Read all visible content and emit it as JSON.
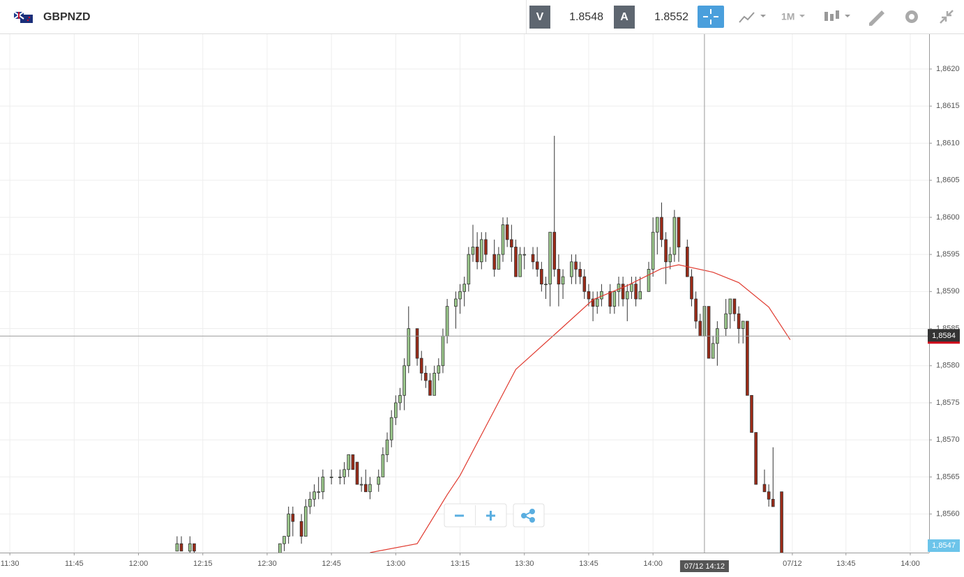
{
  "toolbar": {
    "symbol": "GBPNZD",
    "sell_label": "V",
    "sell_price": "1.8548",
    "buy_label": "A",
    "buy_price": "1.8552",
    "timeframe": "1M"
  },
  "chart_data": {
    "type": "candlestick",
    "x": [
      39,
      40,
      42,
      43,
      63,
      64,
      65,
      66,
      68,
      69,
      70,
      71,
      72,
      73,
      75,
      77,
      78,
      79,
      80,
      81,
      82,
      83,
      84,
      86,
      87,
      88,
      89,
      90,
      91,
      92,
      93,
      95,
      96,
      97,
      98,
      99,
      100,
      101,
      102,
      104,
      105,
      106,
      107,
      108,
      109,
      110,
      111,
      113,
      114,
      115,
      116,
      117,
      118,
      119,
      120,
      122,
      123,
      124,
      125,
      126,
      127,
      128,
      129,
      131,
      132,
      133,
      134,
      135,
      136,
      137,
      138,
      140,
      141,
      142,
      143,
      144,
      145,
      146,
      147,
      149,
      150,
      151,
      152,
      153,
      154,
      155,
      156,
      158,
      159,
      160,
      161,
      162,
      163,
      164,
      165,
      167,
      168,
      169,
      170,
      171,
      172,
      173,
      174,
      176,
      177,
      178,
      180
    ],
    "open": [
      1.8555,
      1.8556,
      1.8555,
      1.8556,
      1.8554,
      1.8556,
      1.8557,
      1.856,
      1.8559,
      1.8557,
      1.8561,
      1.8562,
      1.8563,
      1.8563,
      1.8565,
      1.8565,
      1.8565,
      1.8566,
      1.8568,
      1.8567,
      1.8564,
      1.8564,
      1.8563,
      1.8564,
      1.8565,
      1.8568,
      1.857,
      1.8573,
      1.8575,
      1.8576,
      1.858,
      1.8585,
      1.8581,
      1.8579,
      1.8578,
      1.8576,
      1.8579,
      1.858,
      1.8584,
      1.8588,
      1.8589,
      1.859,
      1.8591,
      1.8595,
      1.8596,
      1.8594,
      1.8597,
      1.8595,
      1.8593,
      1.8595,
      1.8599,
      1.8597,
      1.8596,
      1.8592,
      1.8595,
      1.8595,
      1.8594,
      1.8593,
      1.8591,
      1.8591,
      1.8598,
      1.8593,
      1.8591,
      1.8592,
      1.8594,
      1.8593,
      1.8592,
      1.859,
      1.8589,
      1.8588,
      1.8589,
      1.859,
      1.8588,
      1.859,
      1.8591,
      1.8589,
      1.859,
      1.8591,
      1.8589,
      1.859,
      1.8593,
      1.8598,
      1.86,
      1.8597,
      1.8594,
      1.8595,
      1.86,
      1.8596,
      1.8592,
      1.8589,
      1.8586,
      1.8584,
      1.8588,
      1.8581,
      1.8583,
      1.8585,
      1.8587,
      1.8589,
      1.8587,
      1.8585,
      1.8586,
      1.8576,
      1.8571,
      1.8564,
      1.8563,
      1.8562,
      1.8563
    ],
    "high": [
      1.8557,
      1.8557,
      1.8557,
      1.8556,
      1.8556,
      1.8557,
      1.8561,
      1.8561,
      1.856,
      1.8562,
      1.8563,
      1.8564,
      1.8565,
      1.8566,
      1.8566,
      1.8566,
      1.8567,
      1.8568,
      1.8568,
      1.8567,
      1.8565,
      1.8566,
      1.8565,
      1.8566,
      1.8569,
      1.8571,
      1.8574,
      1.8576,
      1.8577,
      1.8581,
      1.8588,
      1.8585,
      1.8582,
      1.858,
      1.8579,
      1.858,
      1.8581,
      1.8585,
      1.8589,
      1.859,
      1.8591,
      1.8592,
      1.8596,
      1.8599,
      1.8598,
      1.8598,
      1.8598,
      1.8597,
      1.8596,
      1.86,
      1.86,
      1.8599,
      1.8597,
      1.8596,
      1.8596,
      1.8596,
      1.8596,
      1.8594,
      1.8592,
      1.8598,
      1.8611,
      1.8595,
      1.8593,
      1.8595,
      1.8595,
      1.8594,
      1.8593,
      1.8591,
      1.859,
      1.859,
      1.8591,
      1.8591,
      1.859,
      1.8592,
      1.8592,
      1.8591,
      1.8592,
      1.8592,
      1.8592,
      1.8594,
      1.86,
      1.86,
      1.8602,
      1.8598,
      1.8596,
      1.8601,
      1.86,
      1.8597,
      1.8593,
      1.859,
      1.8587,
      1.8588,
      1.8588,
      1.8584,
      1.8586,
      1.8589,
      1.8589,
      1.8589,
      1.8588,
      1.8586,
      1.8586,
      1.8576,
      1.8571,
      1.8566,
      1.8564,
      1.8569,
      1.8563
    ],
    "low": [
      1.8555,
      1.8555,
      1.8554,
      1.8554,
      1.8553,
      1.8555,
      1.8556,
      1.8557,
      1.8556,
      1.8557,
      1.856,
      1.8561,
      1.8562,
      1.8562,
      1.8564,
      1.8564,
      1.8564,
      1.8565,
      1.8566,
      1.8564,
      1.8563,
      1.8563,
      1.8562,
      1.8563,
      1.8565,
      1.8567,
      1.8569,
      1.8572,
      1.8574,
      1.8574,
      1.8579,
      1.858,
      1.8578,
      1.8577,
      1.8576,
      1.8576,
      1.8578,
      1.8579,
      1.8583,
      1.8585,
      1.8587,
      1.8588,
      1.859,
      1.8594,
      1.8593,
      1.8593,
      1.8594,
      1.8592,
      1.8593,
      1.8594,
      1.8596,
      1.8594,
      1.8592,
      1.8592,
      1.8593,
      1.8593,
      1.8592,
      1.859,
      1.8589,
      1.8588,
      1.8592,
      1.8588,
      1.8589,
      1.8591,
      1.8591,
      1.8591,
      1.8589,
      1.8588,
      1.8586,
      1.8587,
      1.8588,
      1.8587,
      1.8587,
      1.8588,
      1.8588,
      1.8586,
      1.8589,
      1.8588,
      1.8589,
      1.859,
      1.8592,
      1.8595,
      1.8596,
      1.8591,
      1.8593,
      1.8594,
      1.8594,
      1.8592,
      1.8588,
      1.8585,
      1.8584,
      1.8584,
      1.8581,
      1.8581,
      1.858,
      1.8584,
      1.8585,
      1.8586,
      1.8583,
      1.8583,
      1.8576,
      1.8571,
      1.8564,
      1.8563,
      1.8561,
      1.8561,
      1.8554
    ],
    "close": [
      1.8556,
      1.8555,
      1.8556,
      1.8555,
      1.8556,
      1.8557,
      1.856,
      1.8559,
      1.8557,
      1.8561,
      1.8562,
      1.8563,
      1.8563,
      1.8565,
      1.8565,
      1.8565,
      1.8566,
      1.8568,
      1.8566,
      1.8564,
      1.8564,
      1.8563,
      1.8564,
      1.8565,
      1.8568,
      1.857,
      1.8573,
      1.8575,
      1.8576,
      1.858,
      1.8585,
      1.8581,
      1.8579,
      1.8578,
      1.8576,
      1.8579,
      1.858,
      1.8584,
      1.8588,
      1.8589,
      1.859,
      1.8591,
      1.8595,
      1.8596,
      1.8594,
      1.8597,
      1.8595,
      1.8593,
      1.8595,
      1.8599,
      1.8597,
      1.8596,
      1.8592,
      1.8595,
      1.8595,
      1.8594,
      1.8593,
      1.8591,
      1.8591,
      1.8598,
      1.8593,
      1.8591,
      1.8592,
      1.8594,
      1.8593,
      1.8592,
      1.859,
      1.8589,
      1.8588,
      1.8589,
      1.859,
      1.8588,
      1.859,
      1.8591,
      1.8589,
      1.859,
      1.8591,
      1.8589,
      1.859,
      1.8593,
      1.8598,
      1.86,
      1.8597,
      1.8594,
      1.8595,
      1.86,
      1.8596,
      1.8592,
      1.8589,
      1.8586,
      1.8584,
      1.8588,
      1.8581,
      1.8583,
      1.8585,
      1.8587,
      1.8589,
      1.8587,
      1.8585,
      1.8586,
      1.8576,
      1.8571,
      1.8564,
      1.8563,
      1.8562,
      1.8561,
      1.8554
    ],
    "up_color": "#9cc98c",
    "down_color": "#9b2b18",
    "moving_average": {
      "color": "#e03a2f",
      "x": [
        84,
        95,
        102,
        105,
        112,
        118,
        128,
        136,
        144,
        152,
        156,
        164,
        170,
        177,
        182
      ],
      "values": [
        1.85548,
        1.8556,
        1.85626,
        1.85652,
        1.85729,
        1.85795,
        1.85847,
        1.85889,
        1.85908,
        1.85931,
        1.85936,
        1.85926,
        1.85912,
        1.85879,
        1.85835
      ]
    },
    "xlim": [
      -2.3,
      214.4
    ],
    "xticks": [
      {
        "value": 0,
        "label": "11:30"
      },
      {
        "value": 15,
        "label": "11:45"
      },
      {
        "value": 30,
        "label": "12:00"
      },
      {
        "value": 45,
        "label": "12:15"
      },
      {
        "value": 60,
        "label": "12:30"
      },
      {
        "value": 75,
        "label": "12:45"
      },
      {
        "value": 90,
        "label": "13:00"
      },
      {
        "value": 105,
        "label": "13:15"
      },
      {
        "value": 120,
        "label": "13:30"
      },
      {
        "value": 135,
        "label": "13:45"
      },
      {
        "value": 150,
        "label": "14:00"
      },
      {
        "value": 182.5,
        "label": "07/12"
      },
      {
        "value": 195,
        "label": "13:45"
      },
      {
        "value": 210,
        "label": "14:00"
      }
    ],
    "ylim": [
      1.85548,
      1.86247
    ],
    "yticks": [
      {
        "value": 1.856,
        "label": "1,8560"
      },
      {
        "value": 1.8565,
        "label": "1,8565"
      },
      {
        "value": 1.857,
        "label": "1,8570"
      },
      {
        "value": 1.8575,
        "label": "1,8575"
      },
      {
        "value": 1.858,
        "label": "1,8580"
      },
      {
        "value": 1.8585,
        "label": "1,8585"
      },
      {
        "value": 1.859,
        "label": "1,8590"
      },
      {
        "value": 1.8595,
        "label": "1,8595"
      },
      {
        "value": 1.86,
        "label": "1,8600"
      },
      {
        "value": 1.8605,
        "label": "1,8605"
      },
      {
        "value": 1.861,
        "label": "1,8610"
      },
      {
        "value": 1.8615,
        "label": "1,8615"
      },
      {
        "value": 1.862,
        "label": "1,8620"
      }
    ],
    "grid": true,
    "crosshair": {
      "value": 1.8584,
      "label": "1,8584",
      "x": 162,
      "time_label": "07/12 14:12"
    },
    "last_price": {
      "value": 1.8547,
      "label": "1,8547"
    }
  }
}
